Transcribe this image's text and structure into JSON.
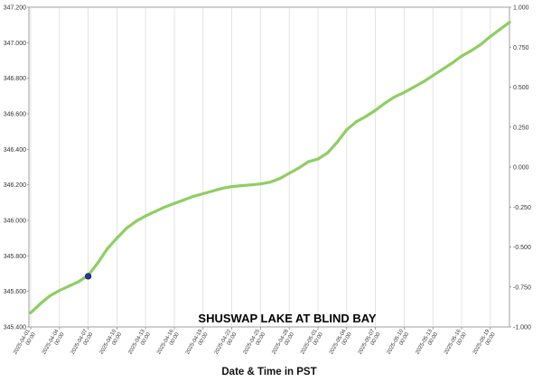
{
  "chart_data": {
    "type": "line",
    "title": "SHUSWAP LAKE AT BLIND BAY",
    "xlabel": "Date & Time in PST",
    "ylabel": "",
    "ylim": [
      345.4,
      347.2
    ],
    "y2lim": [
      -1.0,
      1.0
    ],
    "y_ticks": [
      "345.400",
      "345.600",
      "345.800",
      "346.000",
      "346.200",
      "346.400",
      "346.600",
      "346.800",
      "347.000",
      "347.200"
    ],
    "y2_ticks": [
      "-1.000",
      "-0.750",
      "-0.500",
      "-0.250",
      "0.000",
      "0.250",
      "0.500",
      "0.750",
      "1.000"
    ],
    "x_ticks": [
      {
        "date": "2025-04-01",
        "time": "00:00"
      },
      {
        "date": "2025-04-04",
        "time": "00:00"
      },
      {
        "date": "2025-04-07",
        "time": "00:00"
      },
      {
        "date": "2025-04-10",
        "time": "00:00"
      },
      {
        "date": "2025-04-13",
        "time": "00:00"
      },
      {
        "date": "2025-04-16",
        "time": "00:00"
      },
      {
        "date": "2025-04-19",
        "time": "00:00"
      },
      {
        "date": "2025-04-22",
        "time": "00:00"
      },
      {
        "date": "2025-04-25",
        "time": "00:00"
      },
      {
        "date": "2025-04-28",
        "time": "00:00"
      },
      {
        "date": "2025-05-01",
        "time": "00:00"
      },
      {
        "date": "2025-05-04",
        "time": "00:00"
      },
      {
        "date": "2025-05-07",
        "time": "00:00"
      },
      {
        "date": "2025-05-10",
        "time": "00:00"
      },
      {
        "date": "2025-05-13",
        "time": "00:00"
      },
      {
        "date": "2025-05-16",
        "time": "00:00"
      },
      {
        "date": "2025-05-19",
        "time": "00:00"
      }
    ],
    "x_range": [
      "2025-04-01",
      "2025-05-21"
    ],
    "grid": "vertical",
    "series": [
      {
        "color": "#8fce63",
        "points": [
          [
            "2025-04-01",
            345.48
          ],
          [
            "2025-04-02",
            345.53
          ],
          [
            "2025-04-03",
            345.575
          ],
          [
            "2025-04-04",
            345.605
          ],
          [
            "2025-04-05",
            345.63
          ],
          [
            "2025-04-06",
            345.655
          ],
          [
            "2025-04-07",
            345.69
          ],
          [
            "2025-04-08",
            345.76
          ],
          [
            "2025-04-09",
            345.84
          ],
          [
            "2025-04-10",
            345.9
          ],
          [
            "2025-04-11",
            345.955
          ],
          [
            "2025-04-12",
            345.995
          ],
          [
            "2025-04-13",
            346.025
          ],
          [
            "2025-04-14",
            346.05
          ],
          [
            "2025-04-15",
            346.075
          ],
          [
            "2025-04-16",
            346.095
          ],
          [
            "2025-04-17",
            346.115
          ],
          [
            "2025-04-18",
            346.135
          ],
          [
            "2025-04-19",
            346.15
          ],
          [
            "2025-04-20",
            346.165
          ],
          [
            "2025-04-21",
            346.18
          ],
          [
            "2025-04-22",
            346.19
          ],
          [
            "2025-04-23",
            346.195
          ],
          [
            "2025-04-24",
            346.2
          ],
          [
            "2025-04-25",
            346.205
          ],
          [
            "2025-04-26",
            346.215
          ],
          [
            "2025-04-27",
            346.235
          ],
          [
            "2025-04-28",
            346.265
          ],
          [
            "2025-04-29",
            346.295
          ],
          [
            "2025-04-30",
            346.33
          ],
          [
            "2025-05-01",
            346.345
          ],
          [
            "2025-05-02",
            346.38
          ],
          [
            "2025-05-03",
            346.44
          ],
          [
            "2025-05-04",
            346.51
          ],
          [
            "2025-05-05",
            346.555
          ],
          [
            "2025-05-06",
            346.585
          ],
          [
            "2025-05-07",
            346.62
          ],
          [
            "2025-05-08",
            346.66
          ],
          [
            "2025-05-09",
            346.695
          ],
          [
            "2025-05-10",
            346.72
          ],
          [
            "2025-05-11",
            346.75
          ],
          [
            "2025-05-12",
            346.78
          ],
          [
            "2025-05-13",
            346.815
          ],
          [
            "2025-05-14",
            346.85
          ],
          [
            "2025-05-15",
            346.885
          ],
          [
            "2025-05-16",
            346.925
          ],
          [
            "2025-05-17",
            346.955
          ],
          [
            "2025-05-18",
            346.99
          ],
          [
            "2025-05-19",
            347.035
          ],
          [
            "2025-05-20",
            347.075
          ],
          [
            "2025-05-21",
            347.115
          ]
        ]
      }
    ],
    "marker": {
      "date": "2025-04-07",
      "value": 345.685,
      "color": "#1f3d99"
    }
  }
}
